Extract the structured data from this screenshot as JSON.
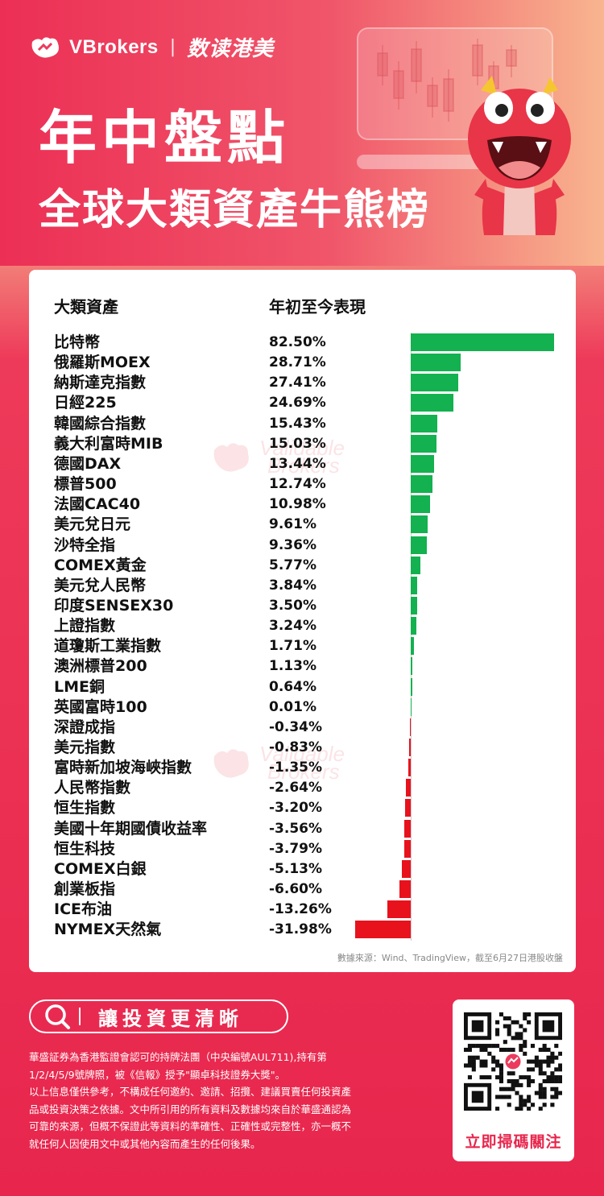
{
  "header": {
    "brand": "VBrokers",
    "separator": "|",
    "brand_cn": "数读港美",
    "title": "年中盤點",
    "subtitle": "全球大類資產牛熊榜"
  },
  "table": {
    "col_asset": "大類資產",
    "col_perf": "年初至今表現",
    "source": "數據來源：Wind、TradingView，截至6月27日港股收盤"
  },
  "watermark": [
    "Validable",
    "Brokers"
  ],
  "chart_data": {
    "type": "bar",
    "orientation": "horizontal",
    "categories": [
      "比特幣",
      "俄羅斯MOEX",
      "納斯達克指數",
      "日經225",
      "韓國綜合指數",
      "義大利富時MIB",
      "德國DAX",
      "標普500",
      "法國CAC40",
      "美元兌日元",
      "沙特全指",
      "COMEX黃金",
      "美元兌人民幣",
      "印度SENSEX30",
      "上證指數",
      "道瓊斯工業指數",
      "澳洲標普200",
      "LME銅",
      "英國富時100",
      "深證成指",
      "美元指數",
      "富時新加坡海峽指數",
      "人民幣指數",
      "恒生指數",
      "美國十年期國債收益率",
      "恒生科技",
      "COMEX白銀",
      "創業板指",
      "ICE布油",
      "NYMEX天然氣"
    ],
    "labels": [
      "82.50%",
      "28.71%",
      "27.41%",
      "24.69%",
      "15.43%",
      "15.03%",
      "13.44%",
      "12.74%",
      "10.98%",
      "9.61%",
      "9.36%",
      "5.77%",
      "3.84%",
      "3.50%",
      "3.24%",
      "1.71%",
      "1.13%",
      "0.64%",
      "0.01%",
      "-0.34%",
      "-0.83%",
      "-1.35%",
      "-2.64%",
      "-3.20%",
      "-3.56%",
      "-3.79%",
      "-5.13%",
      "-6.60%",
      "-13.26%",
      "-31.98%"
    ],
    "values": [
      82.5,
      28.71,
      27.41,
      24.69,
      15.43,
      15.03,
      13.44,
      12.74,
      10.98,
      9.61,
      9.36,
      5.77,
      3.84,
      3.5,
      3.24,
      1.71,
      1.13,
      0.64,
      0.01,
      -0.34,
      -0.83,
      -1.35,
      -2.64,
      -3.2,
      -3.56,
      -3.79,
      -5.13,
      -6.6,
      -13.26,
      -31.98
    ],
    "colors": {
      "positive": "#13b14f",
      "negative": "#e8121d"
    }
  },
  "footer": {
    "search_label": "讓投資更清晰",
    "disclaimer": [
      "華盛証券為香港監證會認可的持牌法團（中央編號AUL711),持有第",
      "1/2/4/5/9號牌照，被《信報》授予\"顯卓科技證券大獎\"。",
      "以上信息僅供參考，不構成任何邀約、邀請、招攬、建議買賣任何投資產",
      "品或投資決策之依據。文中所引用的所有資料及數據均來自於華盛通認為",
      "可靠的來源，但概不保證此等資料的準確性、正確性或完整性，亦一概不",
      "就任何人因使用文中或其他內容而產生的任何後果。"
    ],
    "qr_label": "立即掃碼關注"
  }
}
